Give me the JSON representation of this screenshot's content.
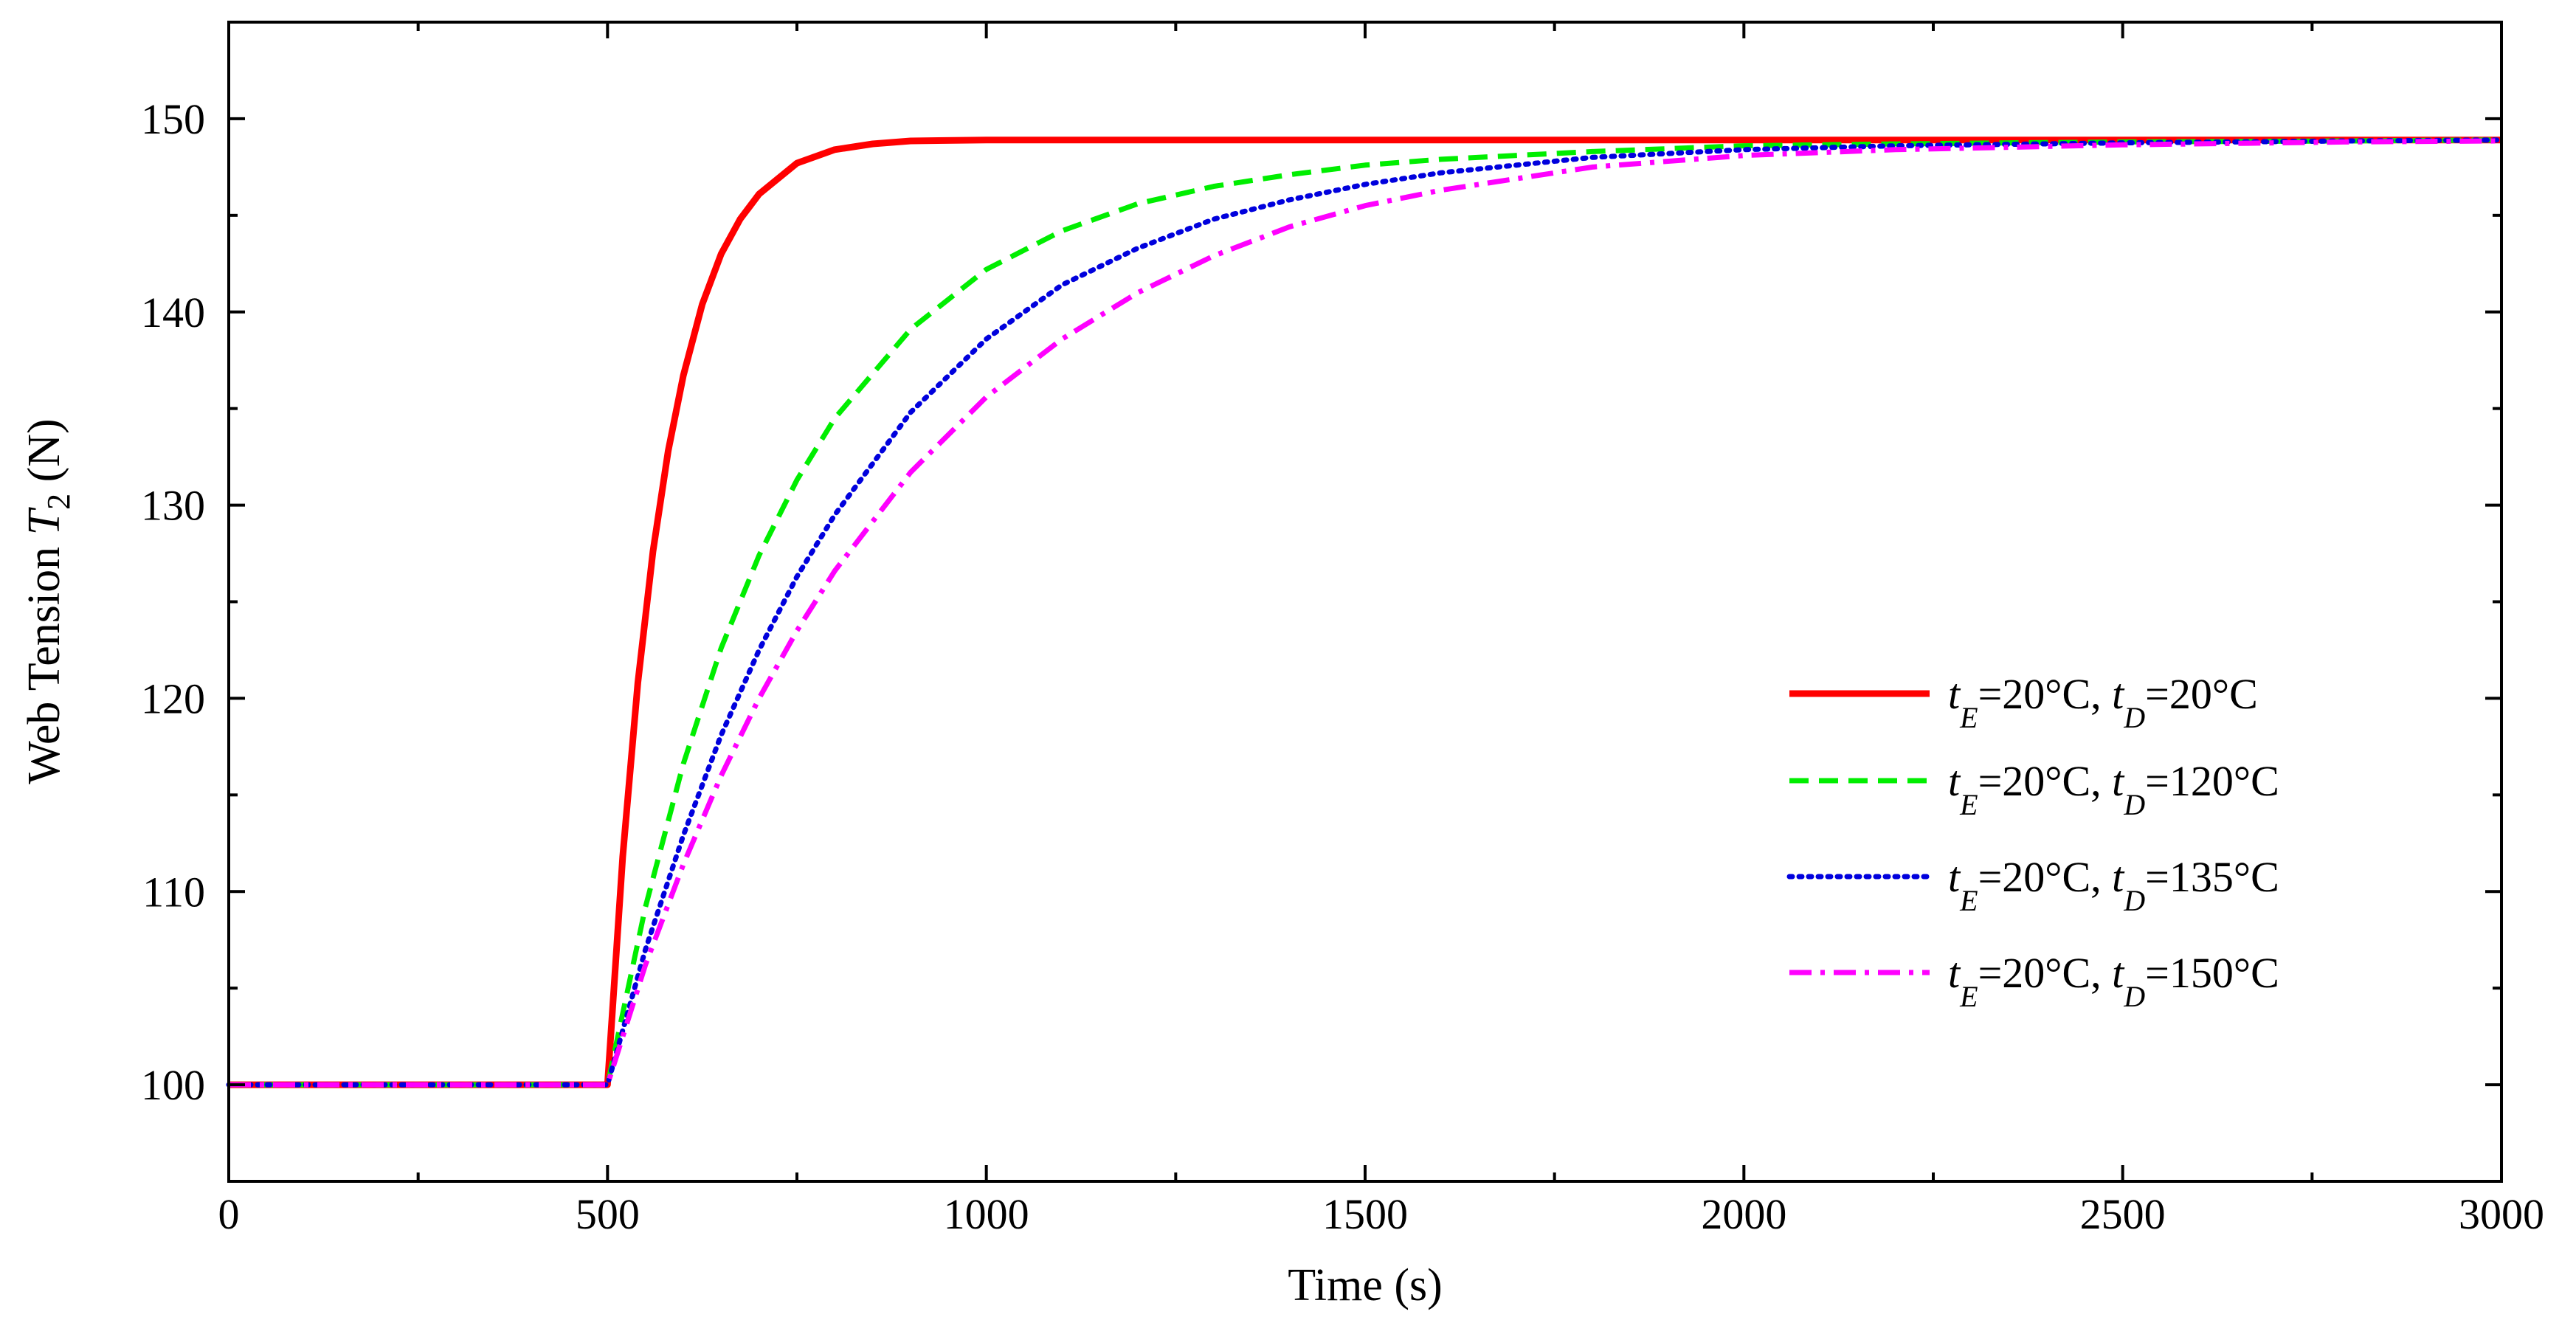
{
  "chart_data": {
    "type": "line",
    "title": "",
    "xlabel": "Time (s)",
    "ylabel_prefix": "Web Tension ",
    "ylabel_var": "T",
    "ylabel_sub": "2",
    "ylabel_suffix": " (N)",
    "xlim": [
      0,
      3000
    ],
    "ylim": [
      95,
      155
    ],
    "x_ticks": [
      0,
      500,
      1000,
      1500,
      2000,
      2500,
      3000
    ],
    "y_ticks": [
      100,
      110,
      120,
      130,
      140,
      150
    ],
    "x_tick_labels": [
      "0",
      "500",
      "1000",
      "1500",
      "2000",
      "2500",
      "3000"
    ],
    "y_tick_labels": [
      "100",
      "110",
      "120",
      "130",
      "140",
      "150"
    ],
    "grid": false,
    "legend_position": "right-middle",
    "step_time": 500,
    "initial_value": 100,
    "series": [
      {
        "name": "tE=20°C, tD=20°C",
        "color": "#ff0000",
        "dash": "solid",
        "legend": {
          "t1": "t",
          "s1": "E",
          "m": "=20°C, ",
          "t2": "t",
          "s2": "D",
          "e": "=20°C"
        },
        "x": [
          0,
          500,
          520,
          540,
          560,
          580,
          600,
          625,
          650,
          675,
          700,
          750,
          800,
          850,
          900,
          1000,
          1500,
          2000,
          2500,
          3000
        ],
        "values": [
          100,
          100,
          111.8,
          120.8,
          127.6,
          132.8,
          136.7,
          140.4,
          143.0,
          144.8,
          146.1,
          147.7,
          148.4,
          148.7,
          148.85,
          148.9,
          148.9,
          148.9,
          148.9,
          148.9
        ]
      },
      {
        "name": "tE=20°C, tD=120°C",
        "color": "#00ee00",
        "dash": "dashed",
        "legend": {
          "t1": "t",
          "s1": "E",
          "m": "=20°C, ",
          "t2": "t",
          "s2": "D",
          "e": "=120°C"
        },
        "x": [
          0,
          500,
          550,
          600,
          650,
          700,
          750,
          800,
          900,
          1000,
          1100,
          1200,
          1300,
          1400,
          1500,
          1600,
          1800,
          2000,
          2200,
          2500,
          2800,
          3000
        ],
        "values": [
          100,
          100,
          109.2,
          116.6,
          122.6,
          127.4,
          131.3,
          134.5,
          139.1,
          142.2,
          144.2,
          145.6,
          146.5,
          147.1,
          147.6,
          147.9,
          148.3,
          148.6,
          148.7,
          148.8,
          148.85,
          148.9
        ]
      },
      {
        "name": "tE=20°C, tD=135°C",
        "color": "#0000dd",
        "dash": "dotted",
        "legend": {
          "t1": "t",
          "s1": "E",
          "m": "=20°C, ",
          "t2": "t",
          "s2": "D",
          "e": "=135°C"
        },
        "x": [
          0,
          500,
          550,
          600,
          650,
          700,
          750,
          800,
          900,
          1000,
          1100,
          1200,
          1300,
          1400,
          1500,
          1600,
          1800,
          2000,
          2200,
          2500,
          2800,
          3000
        ],
        "values": [
          100,
          100,
          107.0,
          112.9,
          118.1,
          122.5,
          126.3,
          129.5,
          134.8,
          138.6,
          141.4,
          143.3,
          144.8,
          145.8,
          146.6,
          147.2,
          148.0,
          148.4,
          148.6,
          148.75,
          148.85,
          148.9
        ]
      },
      {
        "name": "tE=20°C, tD=150°C",
        "color": "#ff00ff",
        "dash": "dashdot",
        "legend": {
          "t1": "t",
          "s1": "E",
          "m": "=20°C, ",
          "t2": "t",
          "s2": "D",
          "e": "=150°C"
        },
        "x": [
          0,
          500,
          550,
          600,
          650,
          700,
          750,
          800,
          900,
          1000,
          1100,
          1200,
          1300,
          1400,
          1500,
          1600,
          1800,
          2000,
          2200,
          2500,
          2800,
          3000
        ],
        "values": [
          100,
          100,
          106.2,
          111.4,
          116.0,
          120.0,
          123.5,
          126.6,
          131.7,
          135.6,
          138.6,
          141.0,
          142.9,
          144.4,
          145.5,
          146.3,
          147.5,
          148.1,
          148.4,
          148.65,
          148.8,
          148.85
        ]
      }
    ]
  }
}
